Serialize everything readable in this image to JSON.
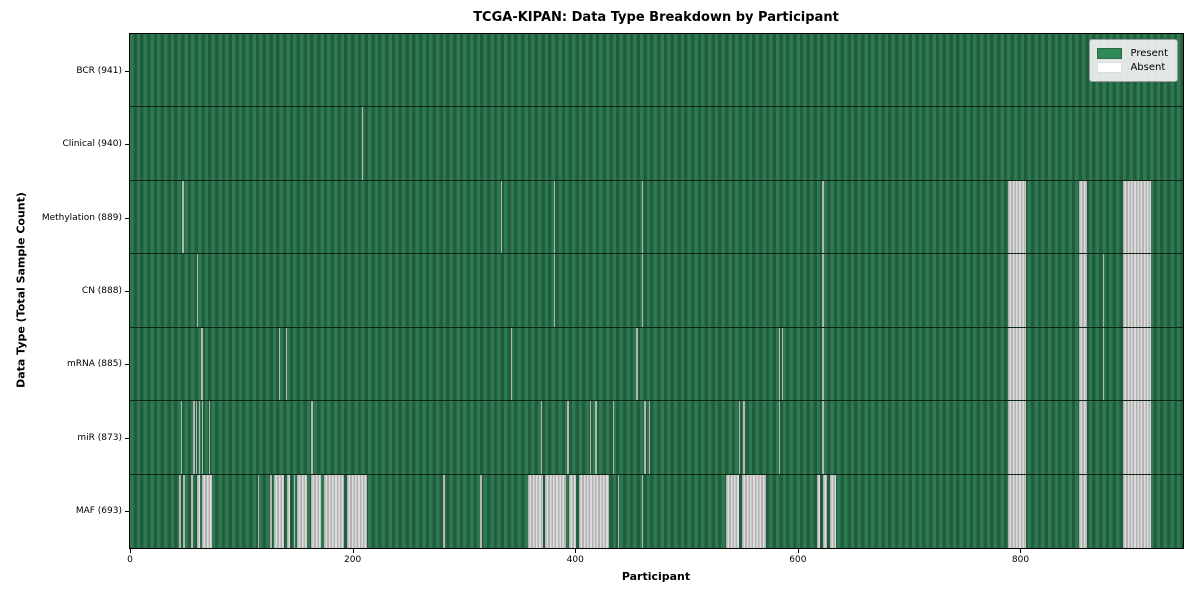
{
  "chart_data": {
    "type": "heatmap",
    "title": "TCGA-KIPAN: Data Type Breakdown by Participant",
    "xlabel": "Participant",
    "ylabel": "Data Type (Total Sample Count)",
    "x_ticks": [
      0,
      200,
      400,
      600,
      800
    ],
    "x_range": [
      0,
      946
    ],
    "grid": false,
    "legend_position": "upper right",
    "legend": [
      {
        "label": "Present",
        "color": "#2e8b57"
      },
      {
        "label": "Absent",
        "color": "#ffffff"
      }
    ],
    "rows": [
      {
        "label": "BCR (941)",
        "data_type": "BCR",
        "present_count": 941,
        "absent_ranges": []
      },
      {
        "label": "Clinical (940)",
        "data_type": "Clinical",
        "present_count": 940,
        "absent_ranges": [
          [
            208,
            209.2
          ]
        ]
      },
      {
        "label": "Methylation (889)",
        "data_type": "Methylation",
        "present_count": 889,
        "absent_ranges": [
          [
            47,
            48.2
          ],
          [
            333,
            334.2
          ],
          [
            381,
            382.2
          ],
          [
            460,
            461.2
          ],
          [
            622,
            623.2
          ],
          [
            789,
            805
          ],
          [
            853,
            860
          ],
          [
            892,
            917
          ]
        ]
      },
      {
        "label": "CN (888)",
        "data_type": "CN",
        "present_count": 888,
        "absent_ranges": [
          [
            60,
            61.2
          ],
          [
            381,
            382.2
          ],
          [
            460,
            461.2
          ],
          [
            622,
            623.2
          ],
          [
            789,
            805
          ],
          [
            853,
            860
          ],
          [
            874,
            875.2
          ],
          [
            892,
            917
          ]
        ]
      },
      {
        "label": "mRNA (885)",
        "data_type": "mRNA",
        "present_count": 885,
        "absent_ranges": [
          [
            64,
            65.2
          ],
          [
            134,
            135.2
          ],
          [
            140,
            141.2
          ],
          [
            342,
            343.2
          ],
          [
            455,
            456.2
          ],
          [
            583,
            584.2
          ],
          [
            585.5,
            586.7
          ],
          [
            622,
            623.2
          ],
          [
            789,
            805
          ],
          [
            853,
            860
          ],
          [
            874,
            875.2
          ],
          [
            892,
            917
          ]
        ]
      },
      {
        "label": "miR (873)",
        "data_type": "miR",
        "present_count": 873,
        "absent_ranges": [
          [
            45.5,
            46.7
          ],
          [
            57,
            58.2
          ],
          [
            59.3,
            60.5
          ],
          [
            61.8,
            63
          ],
          [
            64.5,
            65.7
          ],
          [
            71,
            72.2
          ],
          [
            163,
            164.2
          ],
          [
            369,
            370.2
          ],
          [
            393,
            394.2
          ],
          [
            413,
            414.2
          ],
          [
            418,
            419.2
          ],
          [
            434,
            435.2
          ],
          [
            462,
            463.2
          ],
          [
            466,
            467.2
          ],
          [
            547,
            548.2
          ],
          [
            551,
            552.2
          ],
          [
            583,
            584.2
          ],
          [
            622,
            623.2
          ],
          [
            789,
            805
          ],
          [
            853,
            860
          ],
          [
            892,
            917
          ]
        ]
      },
      {
        "label": "MAF (693)",
        "data_type": "MAF",
        "present_count": 693,
        "absent_ranges": [
          [
            44,
            46
          ],
          [
            48,
            49.2
          ],
          [
            55,
            57
          ],
          [
            60,
            63
          ],
          [
            65,
            74
          ],
          [
            115,
            116.2
          ],
          [
            126,
            127.2
          ],
          [
            129,
            138
          ],
          [
            141,
            144
          ],
          [
            147,
            148.2
          ],
          [
            150,
            159
          ],
          [
            163,
            172
          ],
          [
            174,
            192
          ],
          [
            195,
            213
          ],
          [
            281,
            283
          ],
          [
            314,
            316
          ],
          [
            358,
            371
          ],
          [
            373,
            392
          ],
          [
            394,
            401
          ],
          [
            403,
            430
          ],
          [
            438,
            439.2
          ],
          [
            460,
            461.2
          ],
          [
            535,
            547
          ],
          [
            550,
            571
          ],
          [
            617,
            620
          ],
          [
            623,
            626
          ],
          [
            629,
            634
          ],
          [
            789,
            805
          ],
          [
            853,
            860
          ],
          [
            892,
            917
          ]
        ]
      }
    ]
  }
}
